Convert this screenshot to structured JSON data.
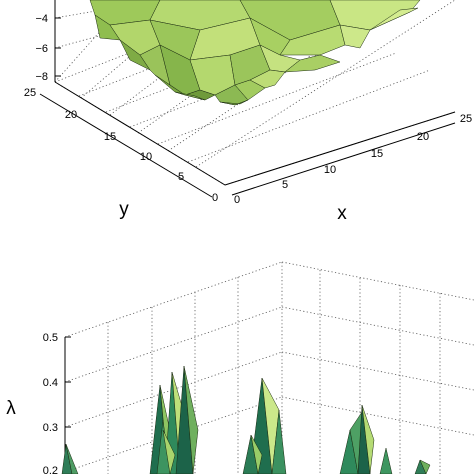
{
  "chart_data": [
    {
      "type": "surface",
      "title": "",
      "xlabel": "x",
      "ylabel": "y",
      "zlabel": "",
      "x_ticks": [
        "0",
        "5",
        "10",
        "15",
        "20",
        "25"
      ],
      "y_ticks": [
        "0",
        "5",
        "10",
        "15",
        "20",
        "25"
      ],
      "z_ticks": [
        "−8",
        "−6",
        "−4"
      ],
      "xlim": [
        0,
        25
      ],
      "ylim": [
        0,
        25
      ],
      "zlim": [
        -8,
        -2
      ],
      "grid": true,
      "colormap": [
        "#7a9a3a",
        "#a8d060",
        "#d8ec8c"
      ],
      "surface_valleys": [
        {
          "x": 8,
          "y": 12,
          "z": -7.5
        },
        {
          "x": 14,
          "y": 16,
          "z": -7.0
        },
        {
          "x": 10,
          "y": 20,
          "z": -6.5
        },
        {
          "x": 18,
          "y": 18,
          "z": -5.0
        }
      ]
    },
    {
      "type": "surface",
      "title": "",
      "xlabel": "",
      "ylabel": "",
      "zlabel": "λ",
      "z_ticks": [
        "0.2",
        "0.3",
        "0.4",
        "0.5"
      ],
      "zlim": [
        0.2,
        0.5
      ],
      "grid": true,
      "colormap": [
        "#1f6e4e",
        "#3f9a60",
        "#b8d86a"
      ],
      "peaks": [
        {
          "position": "left edge",
          "z": 0.27
        },
        {
          "position": "center-left",
          "z": 0.43
        },
        {
          "position": "center",
          "z": 0.39
        },
        {
          "position": "center-right",
          "z": 0.34
        },
        {
          "position": "right",
          "z": 0.22
        }
      ]
    }
  ]
}
